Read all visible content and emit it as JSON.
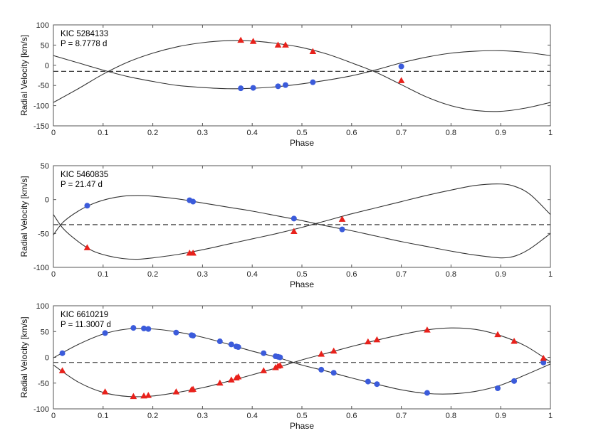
{
  "colors": {
    "primary": "#3b5bdb",
    "secondary": "#e8211b",
    "curve": "#333333",
    "frame": "#555555"
  },
  "chart_data": [
    {
      "type": "scatter",
      "title": "",
      "object": "KIC 5284133",
      "period": "P = 8.7778 d",
      "xlabel": "Phase",
      "ylabel": "Radial Velocity [km/s]",
      "xlim": [
        0,
        1
      ],
      "ylim": [
        -150,
        100
      ],
      "xticks": [
        0,
        0.1,
        0.2,
        0.3,
        0.4,
        0.5,
        0.6,
        0.7,
        0.8,
        0.9,
        1
      ],
      "xtick_labels": [
        "0",
        "0.1",
        "0.2",
        "0.3",
        "0.4",
        "0.5",
        "0.6",
        "0.7",
        "0.8",
        "0.9",
        "1"
      ],
      "yticks": [
        100,
        50,
        0,
        -50,
        -100,
        -150
      ],
      "ytick_labels": [
        "100",
        "50",
        "0",
        "-50",
        "-100",
        "-150"
      ],
      "systemic_velocity": -15,
      "model_curves": [
        {
          "name": "primary-model",
          "x": [
            0,
            0.05,
            0.1,
            0.15,
            0.2,
            0.25,
            0.3,
            0.35,
            0.4,
            0.45,
            0.5,
            0.55,
            0.6,
            0.65,
            0.7,
            0.75,
            0.8,
            0.85,
            0.9,
            0.95,
            1
          ],
          "y": [
            24,
            6,
            -12,
            -28,
            -40,
            -50,
            -55,
            -58,
            -57,
            -53,
            -46,
            -37,
            -26,
            -11,
            6,
            20,
            30,
            35,
            36,
            32,
            24
          ]
        },
        {
          "name": "secondary-model",
          "x": [
            0,
            0.05,
            0.1,
            0.15,
            0.2,
            0.25,
            0.3,
            0.35,
            0.4,
            0.45,
            0.5,
            0.55,
            0.6,
            0.65,
            0.7,
            0.75,
            0.8,
            0.85,
            0.9,
            0.95,
            1
          ],
          "y": [
            -92,
            -58,
            -22,
            8,
            30,
            46,
            56,
            61,
            60,
            54,
            44,
            28,
            6,
            -18,
            -48,
            -78,
            -100,
            -112,
            -114,
            -106,
            -92
          ]
        }
      ],
      "series": [
        {
          "name": "primary",
          "marker": "circle",
          "color": "#3b5bdb",
          "x": [
            0.377,
            0.402,
            0.452,
            0.467,
            0.522,
            0.7
          ],
          "y": [
            -57,
            -56,
            -52,
            -49,
            -42,
            -3
          ]
        },
        {
          "name": "secondary",
          "marker": "triangle",
          "color": "#e8211b",
          "x": [
            0.377,
            0.402,
            0.452,
            0.467,
            0.522,
            0.7
          ],
          "y": [
            62,
            59,
            50,
            50,
            34,
            -38
          ]
        }
      ]
    },
    {
      "type": "scatter",
      "title": "",
      "object": "KIC 5460835",
      "period": "P = 21.47 d",
      "xlabel": "Phase",
      "ylabel": "Radial Velocity [km/s]",
      "xlim": [
        0,
        1
      ],
      "ylim": [
        -100,
        50
      ],
      "xticks": [
        0,
        0.1,
        0.2,
        0.3,
        0.4,
        0.5,
        0.6,
        0.7,
        0.8,
        0.9,
        1
      ],
      "xtick_labels": [
        "0",
        "0.1",
        "0.2",
        "0.3",
        "0.4",
        "0.5",
        "0.6",
        "0.7",
        "0.8",
        "0.9",
        "1"
      ],
      "yticks": [
        50,
        0,
        -50,
        -100
      ],
      "ytick_labels": [
        "50",
        "0",
        "-50",
        "-100"
      ],
      "systemic_velocity": -37,
      "model_curves": [
        {
          "name": "primary-model",
          "x": [
            0,
            0.02,
            0.05,
            0.08,
            0.11,
            0.14,
            0.17,
            0.2,
            0.25,
            0.3,
            0.35,
            0.4,
            0.45,
            0.5,
            0.55,
            0.6,
            0.65,
            0.7,
            0.75,
            0.8,
            0.85,
            0.9,
            0.93,
            0.96,
            1
          ],
          "y": [
            -52,
            -33,
            -17,
            -6,
            1,
            5,
            6,
            5,
            1,
            -5,
            -11,
            -17,
            -24,
            -31,
            -39,
            -46,
            -54,
            -62,
            -69,
            -76,
            -82,
            -86,
            -83,
            -72,
            -50
          ]
        },
        {
          "name": "secondary-model",
          "x": [
            0,
            0.02,
            0.05,
            0.08,
            0.11,
            0.14,
            0.17,
            0.2,
            0.25,
            0.3,
            0.35,
            0.4,
            0.45,
            0.5,
            0.55,
            0.6,
            0.65,
            0.7,
            0.75,
            0.8,
            0.85,
            0.9,
            0.93,
            0.96,
            1
          ],
          "y": [
            -22,
            -43,
            -62,
            -76,
            -83,
            -87,
            -88,
            -86,
            -81,
            -74,
            -66,
            -58,
            -50,
            -41,
            -31,
            -21,
            -12,
            -3,
            6,
            14,
            21,
            23,
            19,
            7,
            -22
          ]
        }
      ],
      "series": [
        {
          "name": "primary",
          "marker": "circle",
          "color": "#3b5bdb",
          "x": [
            0.068,
            0.274,
            0.281,
            0.484,
            0.581
          ],
          "y": [
            -9,
            -1,
            -3,
            -28,
            -44
          ]
        },
        {
          "name": "secondary",
          "marker": "triangle",
          "color": "#e8211b",
          "x": [
            0.068,
            0.274,
            0.281,
            0.484,
            0.581
          ],
          "y": [
            -71,
            -79,
            -79,
            -47,
            -29
          ]
        }
      ]
    },
    {
      "type": "scatter",
      "title": "",
      "object": "KIC 6610219",
      "period": "P = 11.3007 d",
      "xlabel": "Phase",
      "ylabel": "Radial Velocity [km/s]",
      "xlim": [
        0,
        1
      ],
      "ylim": [
        -100,
        100
      ],
      "xticks": [
        0,
        0.1,
        0.2,
        0.3,
        0.4,
        0.5,
        0.6,
        0.7,
        0.8,
        0.9,
        1
      ],
      "xtick_labels": [
        "0",
        "0.1",
        "0.2",
        "0.3",
        "0.4",
        "0.5",
        "0.6",
        "0.7",
        "0.8",
        "0.9",
        "1"
      ],
      "yticks": [
        100,
        50,
        0,
        -50,
        -100
      ],
      "ytick_labels": [
        "100",
        "50",
        "0",
        "-50",
        "-100"
      ],
      "systemic_velocity": -10,
      "model_curves": [
        {
          "name": "primary-model",
          "x": [
            0,
            0.05,
            0.1,
            0.15,
            0.2,
            0.25,
            0.3,
            0.35,
            0.4,
            0.45,
            0.5,
            0.55,
            0.6,
            0.65,
            0.7,
            0.75,
            0.8,
            0.85,
            0.9,
            0.95,
            1
          ],
          "y": [
            -1,
            25,
            45,
            55,
            55,
            49,
            39,
            26,
            12,
            0,
            -15,
            -27,
            -40,
            -52,
            -63,
            -70,
            -71,
            -66,
            -54,
            -34,
            -13
          ]
        },
        {
          "name": "secondary-model",
          "x": [
            0,
            0.05,
            0.1,
            0.15,
            0.2,
            0.25,
            0.3,
            0.35,
            0.4,
            0.45,
            0.5,
            0.55,
            0.6,
            0.65,
            0.7,
            0.75,
            0.8,
            0.85,
            0.9,
            0.95,
            1
          ],
          "y": [
            -15,
            -48,
            -68,
            -76,
            -75,
            -68,
            -59,
            -47,
            -34,
            -20,
            -5,
            8,
            21,
            33,
            44,
            53,
            57,
            54,
            42,
            22,
            -9
          ]
        }
      ],
      "series": [
        {
          "name": "primary",
          "marker": "circle",
          "color": "#3b5bdb",
          "x": [
            0.018,
            0.104,
            0.161,
            0.182,
            0.191,
            0.247,
            0.278,
            0.281,
            0.335,
            0.358,
            0.368,
            0.372,
            0.423,
            0.447,
            0.452,
            0.456,
            0.539,
            0.564,
            0.633,
            0.651,
            0.752,
            0.894,
            0.927,
            0.986
          ],
          "y": [
            8,
            47,
            57,
            56,
            55,
            48,
            43,
            42,
            31,
            25,
            21,
            20,
            8,
            2,
            1,
            0,
            -24,
            -30,
            -47,
            -52,
            -69,
            -60,
            -46,
            -10
          ]
        },
        {
          "name": "secondary",
          "marker": "triangle",
          "color": "#e8211b",
          "x": [
            0.018,
            0.104,
            0.161,
            0.182,
            0.191,
            0.247,
            0.278,
            0.281,
            0.335,
            0.358,
            0.368,
            0.372,
            0.423,
            0.447,
            0.452,
            0.456,
            0.539,
            0.564,
            0.633,
            0.651,
            0.752,
            0.894,
            0.927,
            0.986
          ],
          "y": [
            -26,
            -67,
            -76,
            -75,
            -74,
            -67,
            -63,
            -62,
            -50,
            -44,
            -40,
            -38,
            -26,
            -20,
            -17,
            -16,
            6,
            12,
            30,
            34,
            53,
            44,
            31,
            -2
          ]
        }
      ]
    }
  ]
}
